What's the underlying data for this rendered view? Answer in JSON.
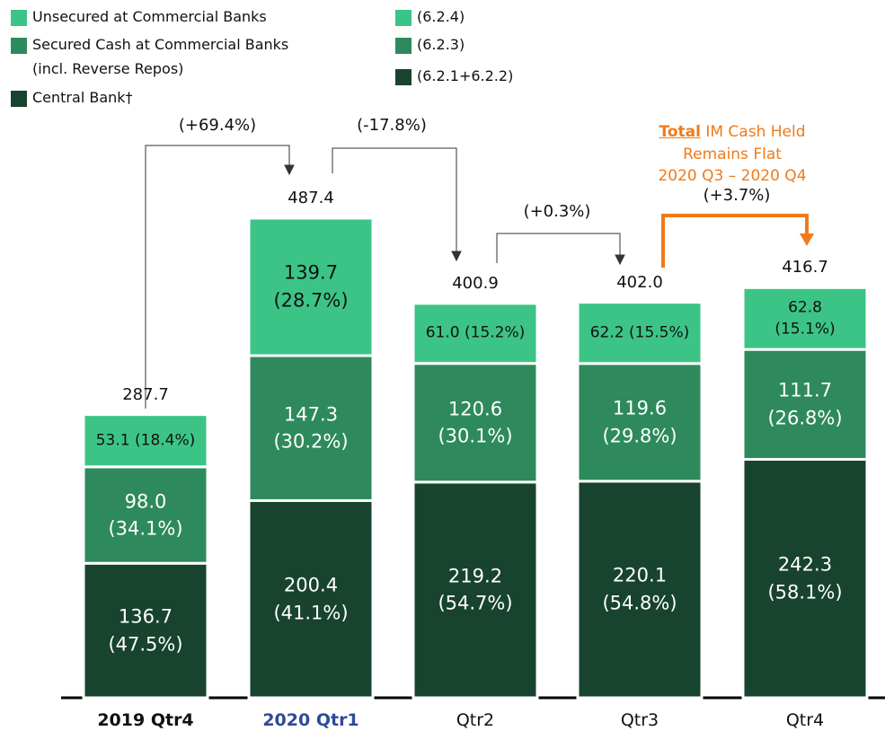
{
  "chart_data": {
    "type": "stacked_bar",
    "categories": [
      "2019 Qtr4",
      "2020 Qtr1",
      "Qtr2",
      "Qtr3",
      "Qtr4"
    ],
    "series": [
      {
        "name": "Central Bank†",
        "code": "(6.2.1+6.2.2)",
        "color": "#17432f",
        "values": [
          136.7,
          200.4,
          219.2,
          220.1,
          242.3
        ],
        "value_labels": [
          "136.7\n(47.5%)",
          "200.4\n(41.1%)",
          "219.2\n(54.7%)",
          "220.1\n(54.8%)",
          "242.3\n(58.1%)"
        ]
      },
      {
        "name": "Secured Cash at Commercial Banks\n(incl. Reverse Repos)",
        "code": "(6.2.3)",
        "color": "#2e8a5c",
        "values": [
          98.0,
          147.3,
          120.6,
          119.6,
          111.7
        ],
        "value_labels": [
          "98.0\n(34.1%)",
          "147.3\n(30.2%)",
          "120.6\n(30.1%)",
          "119.6\n(29.8%)",
          "111.7\n(26.8%)"
        ]
      },
      {
        "name": "Unsecured at Commercial Banks",
        "code": "(6.2.4)",
        "color": "#3cc487",
        "values": [
          53.1,
          139.7,
          61.0,
          62.2,
          62.8
        ],
        "value_labels": [
          "53.1 (18.4%)",
          "139.7\n(28.7%)",
          "61.0 (15.2%)",
          "62.2 (15.5%)",
          "62.8 (15.1%)"
        ]
      }
    ],
    "totals": [
      287.7,
      487.4,
      400.9,
      402.0,
      416.7
    ],
    "total_labels": [
      "287.7",
      "487.4",
      "400.9",
      "402.0",
      "416.7"
    ],
    "ylim": [
      0,
      700
    ],
    "annotations": [
      "(+69.4%)",
      "(-17.8%)",
      "(+0.3%)",
      "(+3.7%)"
    ],
    "highlight": {
      "emphasis": "Total",
      "text": "IM Cash Held Remains Flat\n2020 Q3 – 2020 Q4"
    }
  }
}
